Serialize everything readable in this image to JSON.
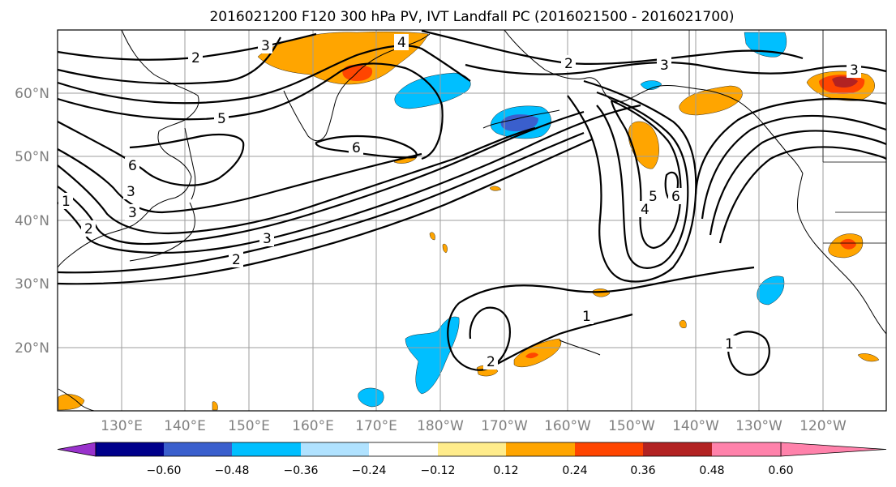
{
  "title": "2016021200 F120 300 hPa PV, IVT Landfall PC (2016021500 - 2016021700)",
  "lat_labels": [
    "60°N",
    "50°N",
    "40°N",
    "30°N",
    "20°N"
  ],
  "lon_labels": [
    "130°E",
    "140°E",
    "150°E",
    "160°E",
    "170°E",
    "180°W",
    "170°W",
    "160°W",
    "150°W",
    "140°W",
    "130°W",
    "120°W"
  ],
  "colorbar": {
    "colors": [
      "#9932cc",
      "#00008b",
      "#3a5fcd",
      "#00bfff",
      "#b0e2ff",
      "#ffffff",
      "#ffec8b",
      "#ffa500",
      "#ff4500",
      "#b22222",
      "#ff82ab"
    ],
    "tick_labels": [
      "−0.60",
      "−0.48",
      "−0.36",
      "−0.24",
      "−0.12",
      "0.12",
      "0.24",
      "0.36",
      "0.48",
      "0.60"
    ]
  },
  "contour_labels": [
    "2",
    "3",
    "4",
    "5",
    "6",
    "6",
    "3",
    "2",
    "1",
    "2",
    "3",
    "2",
    "3",
    "3",
    "5",
    "4",
    "6",
    "1",
    "2",
    "1",
    "3"
  ]
}
